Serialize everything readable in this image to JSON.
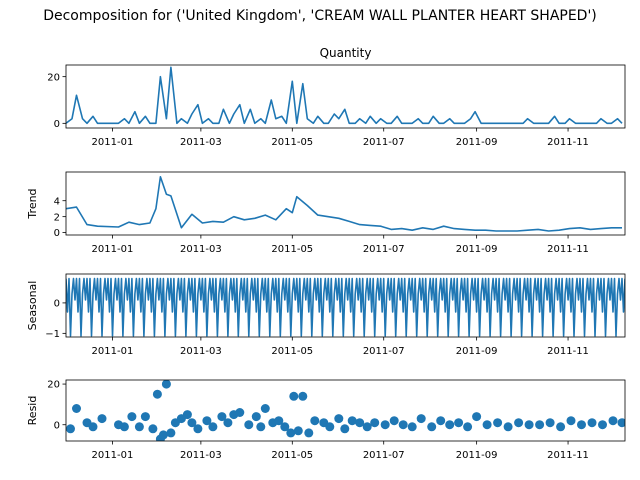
{
  "suptitle": "Decomposition for ('United Kingdom', 'CREAM WALL PLANTER HEART SHAPED')",
  "colors": {
    "line": "#1f77b4",
    "axes": "#000000",
    "background": "#ffffff"
  },
  "chart_data": [
    {
      "type": "line",
      "title": "Quantity",
      "ylabel": "",
      "ylim": [
        -2,
        25
      ],
      "yticks": [
        "0",
        "20"
      ],
      "xticks": [
        "2011-01",
        "2011-03",
        "2011-05",
        "2011-07",
        "2011-09",
        "2011-11"
      ],
      "xlim": [
        "2010-12-01",
        "2011-12-09"
      ],
      "series": [
        {
          "x": [
            "2010-12-01",
            "2010-12-05",
            "2010-12-08",
            "2010-12-12",
            "2010-12-15",
            "2010-12-19",
            "2010-12-22",
            "2011-01-05",
            "2011-01-09",
            "2011-01-12",
            "2011-01-16",
            "2011-01-19",
            "2011-01-23",
            "2011-01-26",
            "2011-01-30",
            "2011-02-02",
            "2011-02-06",
            "2011-02-09",
            "2011-02-13",
            "2011-02-16",
            "2011-02-20",
            "2011-02-23",
            "2011-02-27",
            "2011-03-02",
            "2011-03-06",
            "2011-03-09",
            "2011-03-13",
            "2011-03-16",
            "2011-03-20",
            "2011-03-23",
            "2011-03-27",
            "2011-03-30",
            "2011-04-03",
            "2011-04-06",
            "2011-04-10",
            "2011-04-13",
            "2011-04-17",
            "2011-04-20",
            "2011-04-24",
            "2011-04-27",
            "2011-05-01",
            "2011-05-04",
            "2011-05-08",
            "2011-05-11",
            "2011-05-15",
            "2011-05-18",
            "2011-05-22",
            "2011-05-25",
            "2011-05-29",
            "2011-06-01",
            "2011-06-05",
            "2011-06-08",
            "2011-06-12",
            "2011-06-15",
            "2011-06-19",
            "2011-06-22",
            "2011-06-26",
            "2011-06-29",
            "2011-07-03",
            "2011-07-06",
            "2011-07-10",
            "2011-07-13",
            "2011-07-17",
            "2011-07-20",
            "2011-07-24",
            "2011-07-27",
            "2011-07-31",
            "2011-08-03",
            "2011-08-07",
            "2011-08-10",
            "2011-08-14",
            "2011-08-17",
            "2011-08-21",
            "2011-08-24",
            "2011-08-28",
            "2011-08-31",
            "2011-09-04",
            "2011-09-07",
            "2011-09-11",
            "2011-09-14",
            "2011-09-18",
            "2011-09-21",
            "2011-09-25",
            "2011-09-28",
            "2011-10-02",
            "2011-10-05",
            "2011-10-09",
            "2011-10-12",
            "2011-10-16",
            "2011-10-19",
            "2011-10-23",
            "2011-10-26",
            "2011-10-30",
            "2011-11-02",
            "2011-11-06",
            "2011-11-09",
            "2011-11-13",
            "2011-11-16",
            "2011-11-20",
            "2011-11-23",
            "2011-11-27",
            "2011-11-30",
            "2011-12-04",
            "2011-12-07"
          ],
          "y": [
            0,
            2,
            12,
            2,
            0,
            3,
            0,
            0,
            2,
            0,
            5,
            0,
            3,
            0,
            0,
            20,
            2,
            24,
            0,
            2,
            0,
            4,
            8,
            0,
            2,
            0,
            0,
            6,
            0,
            4,
            8,
            0,
            6,
            0,
            2,
            0,
            10,
            2,
            3,
            0,
            18,
            0,
            17,
            2,
            0,
            3,
            0,
            0,
            4,
            2,
            6,
            0,
            0,
            2,
            0,
            3,
            0,
            2,
            0,
            0,
            3,
            0,
            0,
            0,
            2,
            0,
            0,
            3,
            0,
            0,
            2,
            0,
            0,
            0,
            2,
            5,
            0,
            0,
            0,
            0,
            0,
            0,
            0,
            0,
            0,
            2,
            0,
            0,
            0,
            0,
            3,
            0,
            0,
            2,
            0,
            0,
            0,
            0,
            0,
            2,
            0,
            0,
            2,
            0
          ]
        }
      ]
    },
    {
      "type": "line",
      "title": "",
      "ylabel": "Trend",
      "ylim": [
        -0.3,
        7.6
      ],
      "yticks": [
        "0",
        "2",
        "4"
      ],
      "xticks": [
        "2011-01",
        "2011-03",
        "2011-05",
        "2011-07",
        "2011-09",
        "2011-11"
      ],
      "xlim": [
        "2010-12-01",
        "2011-12-09"
      ],
      "series": [
        {
          "x": [
            "2010-12-01",
            "2010-12-08",
            "2010-12-15",
            "2010-12-22",
            "2011-01-05",
            "2011-01-12",
            "2011-01-19",
            "2011-01-26",
            "2011-01-30",
            "2011-02-02",
            "2011-02-06",
            "2011-02-09",
            "2011-02-16",
            "2011-02-23",
            "2011-03-02",
            "2011-03-09",
            "2011-03-16",
            "2011-03-23",
            "2011-03-30",
            "2011-04-06",
            "2011-04-13",
            "2011-04-20",
            "2011-04-27",
            "2011-05-01",
            "2011-05-04",
            "2011-05-11",
            "2011-05-18",
            "2011-05-25",
            "2011-06-01",
            "2011-06-08",
            "2011-06-15",
            "2011-06-22",
            "2011-06-29",
            "2011-07-06",
            "2011-07-13",
            "2011-07-20",
            "2011-07-27",
            "2011-08-03",
            "2011-08-10",
            "2011-08-17",
            "2011-08-24",
            "2011-08-31",
            "2011-09-07",
            "2011-09-14",
            "2011-09-21",
            "2011-09-28",
            "2011-10-05",
            "2011-10-12",
            "2011-10-19",
            "2011-10-26",
            "2011-11-02",
            "2011-11-09",
            "2011-11-16",
            "2011-11-23",
            "2011-11-30",
            "2011-12-07"
          ],
          "y": [
            3.0,
            3.2,
            1.0,
            0.8,
            0.7,
            1.3,
            1.0,
            1.2,
            3.0,
            7.0,
            4.8,
            4.6,
            0.6,
            2.3,
            1.2,
            1.4,
            1.3,
            2.0,
            1.6,
            1.8,
            2.2,
            1.6,
            3.0,
            2.5,
            4.5,
            3.4,
            2.2,
            2.0,
            1.8,
            1.4,
            1.0,
            0.9,
            0.8,
            0.4,
            0.5,
            0.3,
            0.6,
            0.4,
            0.8,
            0.5,
            0.4,
            0.3,
            0.3,
            0.2,
            0.2,
            0.2,
            0.3,
            0.4,
            0.2,
            0.3,
            0.5,
            0.6,
            0.4,
            0.5,
            0.6,
            0.6
          ]
        }
      ]
    },
    {
      "type": "line",
      "title": "",
      "ylabel": "Seasonal",
      "ylim": [
        -1.12,
        0.95
      ],
      "yticks": [
        "−1",
        "0"
      ],
      "xticks": [
        "2011-01",
        "2011-03",
        "2011-05",
        "2011-07",
        "2011-09",
        "2011-11"
      ],
      "xlim": [
        "2010-12-01",
        "2011-12-09"
      ],
      "period_days": 7,
      "pattern": [
        0.8,
        -0.3,
        0.8,
        -1.08,
        0.3,
        0.8,
        0.1
      ],
      "series": [
        {
          "x_start": "2010-12-01",
          "x_end": "2011-12-09"
        }
      ]
    },
    {
      "type": "scatter",
      "title": "",
      "ylabel": "Resid",
      "ylim": [
        -8,
        22
      ],
      "yticks": [
        "0",
        "20"
      ],
      "xticks": [
        "2011-01",
        "2011-03",
        "2011-05",
        "2011-07",
        "2011-09",
        "2011-11"
      ],
      "xlim": [
        "2010-12-01",
        "2011-12-09"
      ],
      "series": [
        {
          "x": [
            "2010-12-04",
            "2010-12-08",
            "2010-12-15",
            "2010-12-19",
            "2010-12-25",
            "2011-01-05",
            "2011-01-09",
            "2011-01-14",
            "2011-01-19",
            "2011-01-23",
            "2011-01-28",
            "2011-01-31",
            "2011-02-02",
            "2011-02-04",
            "2011-02-06",
            "2011-02-09",
            "2011-02-12",
            "2011-02-16",
            "2011-02-20",
            "2011-02-23",
            "2011-02-27",
            "2011-03-05",
            "2011-03-09",
            "2011-03-15",
            "2011-03-19",
            "2011-03-23",
            "2011-03-27",
            "2011-04-02",
            "2011-04-07",
            "2011-04-10",
            "2011-04-13",
            "2011-04-18",
            "2011-04-22",
            "2011-04-26",
            "2011-04-30",
            "2011-05-02",
            "2011-05-05",
            "2011-05-08",
            "2011-05-12",
            "2011-05-16",
            "2011-05-22",
            "2011-05-26",
            "2011-06-01",
            "2011-06-05",
            "2011-06-10",
            "2011-06-15",
            "2011-06-20",
            "2011-06-25",
            "2011-07-02",
            "2011-07-08",
            "2011-07-14",
            "2011-07-20",
            "2011-07-26",
            "2011-08-02",
            "2011-08-08",
            "2011-08-14",
            "2011-08-20",
            "2011-08-26",
            "2011-09-01",
            "2011-09-08",
            "2011-09-15",
            "2011-09-22",
            "2011-09-29",
            "2011-10-06",
            "2011-10-13",
            "2011-10-20",
            "2011-10-27",
            "2011-11-03",
            "2011-11-10",
            "2011-11-17",
            "2011-11-24",
            "2011-12-01",
            "2011-12-07"
          ],
          "y": [
            -2,
            8,
            1,
            -1,
            3,
            0,
            -1,
            4,
            -1,
            4,
            -2,
            15,
            -7,
            -5,
            20,
            -4,
            1,
            3,
            5,
            1,
            -2,
            2,
            -1,
            4,
            1,
            5,
            6,
            0,
            4,
            -1,
            8,
            1,
            2,
            -1,
            -4,
            14,
            -3,
            14,
            -4,
            2,
            1,
            -1,
            3,
            -2,
            2,
            1,
            -1,
            1,
            0,
            2,
            0,
            -1,
            3,
            -1,
            2,
            0,
            1,
            -1,
            4,
            0,
            1,
            -1,
            1,
            0,
            0,
            1,
            -1,
            2,
            0,
            1,
            0,
            2,
            1
          ]
        }
      ]
    }
  ]
}
